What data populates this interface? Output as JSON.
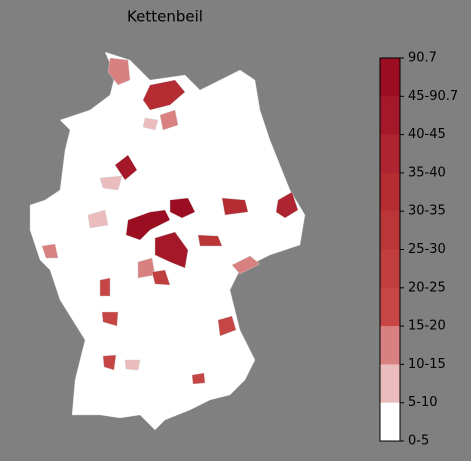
{
  "title": "Kettenbeil",
  "colorbar": {
    "labels": [
      "90.7",
      "45-90.7",
      "40-45",
      "35-40",
      "30-35",
      "25-30",
      "20-25",
      "15-20",
      "10-15",
      "5-10",
      "0-5"
    ],
    "colors": [
      "#9b0e22",
      "#a5182a",
      "#ae2430",
      "#b52d33",
      "#bb3638",
      "#c13e3e",
      "#c64646",
      "#d98080",
      "#ebbcbc",
      "#ffffff"
    ]
  }
}
